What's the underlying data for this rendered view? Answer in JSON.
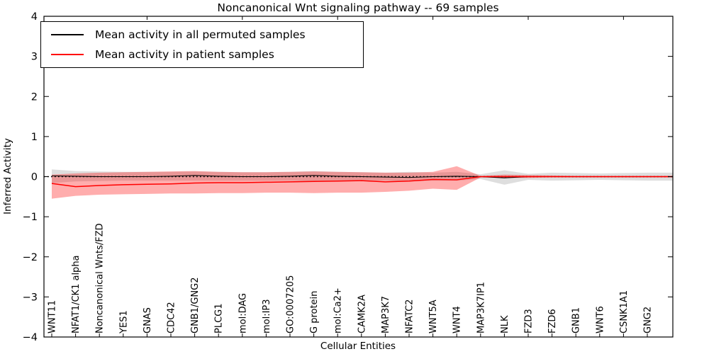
{
  "figure": {
    "title": "Noncanonical Wnt signaling pathway -- 69 samples",
    "xlabel": "Cellular Entities",
    "ylabel": "Inferred Activity"
  },
  "chart_data": {
    "type": "line",
    "title": "Noncanonical Wnt signaling pathway -- 69 samples",
    "xlabel": "Cellular Entities",
    "ylabel": "Inferred Activity",
    "ylim": [
      -4,
      4
    ],
    "yticks": [
      -4,
      -3,
      -2,
      -1,
      0,
      1,
      2,
      3,
      4
    ],
    "grid": false,
    "legend_position": "upper left",
    "background_color": "#ffffff",
    "categories": [
      "WNT11",
      "NFAT1/CK1 alpha",
      "Noncanonical Wnts/FZD",
      "YES1",
      "GNAS",
      "CDC42",
      "GNB1/GNG2",
      "PLCG1",
      "mol:DAG",
      "mol:IP3",
      "GO:0007205",
      "G protein",
      "mol:Ca2+",
      "CAMK2A",
      "MAP3K7",
      "NFATC2",
      "WNT5A",
      "WNT4",
      "MAP3K7IP1",
      "NLK",
      "FZD3",
      "FZD6",
      "GNB1",
      "WNT6",
      "CSNK1A1",
      "GNG2"
    ],
    "series": [
      {
        "name": "Mean activity in all permuted samples",
        "color": "#000000",
        "values": [
          0.02,
          0.01,
          0.0,
          0.0,
          0.0,
          0.01,
          0.03,
          0.01,
          0.0,
          0.0,
          0.01,
          0.03,
          0.01,
          0.0,
          -0.01,
          -0.02,
          0.0,
          0.01,
          0.0,
          -0.03,
          0.0,
          0.0,
          0.0,
          0.0,
          0.0,
          0.0
        ]
      },
      {
        "name": "Mean activity in patient samples",
        "color": "#ff0000",
        "values": [
          -0.17,
          -0.25,
          -0.22,
          -0.2,
          -0.19,
          -0.18,
          -0.16,
          -0.15,
          -0.15,
          -0.14,
          -0.13,
          -0.12,
          -0.11,
          -0.1,
          -0.13,
          -0.11,
          -0.07,
          -0.08,
          0.0,
          0.0,
          0.0,
          0.0,
          0.0,
          0.0,
          0.0,
          0.0
        ]
      }
    ],
    "bands": [
      {
        "name": "permuted-range",
        "color": "#000000",
        "opacity": 0.13,
        "top": [
          0.18,
          0.14,
          0.13,
          0.12,
          0.12,
          0.12,
          0.13,
          0.12,
          0.11,
          0.11,
          0.12,
          0.14,
          0.12,
          0.11,
          0.1,
          0.12,
          0.1,
          0.12,
          0.06,
          0.16,
          0.07,
          0.1,
          0.09,
          0.08,
          0.09,
          0.1
        ],
        "bottom": [
          -0.16,
          -0.12,
          -0.11,
          -0.1,
          -0.1,
          -0.1,
          -0.1,
          -0.1,
          -0.1,
          -0.1,
          -0.1,
          -0.12,
          -0.1,
          -0.1,
          -0.1,
          -0.12,
          -0.1,
          -0.1,
          -0.06,
          -0.2,
          -0.08,
          -0.1,
          -0.09,
          -0.08,
          -0.09,
          -0.1
        ]
      },
      {
        "name": "patient-range",
        "color": "#ff0000",
        "opacity": 0.32,
        "top": [
          0.05,
          0.08,
          0.1,
          0.11,
          0.12,
          0.13,
          0.14,
          0.12,
          0.11,
          0.11,
          0.12,
          0.13,
          0.12,
          0.11,
          0.1,
          0.1,
          0.12,
          0.26,
          0.02,
          0.05,
          0.04,
          0.03,
          0.02,
          0.02,
          0.02,
          0.02
        ],
        "bottom": [
          -0.55,
          -0.48,
          -0.45,
          -0.44,
          -0.43,
          -0.42,
          -0.42,
          -0.41,
          -0.41,
          -0.4,
          -0.4,
          -0.41,
          -0.4,
          -0.4,
          -0.38,
          -0.35,
          -0.3,
          -0.33,
          -0.02,
          -0.03,
          -0.03,
          -0.02,
          -0.02,
          -0.02,
          -0.02,
          -0.02
        ]
      }
    ],
    "zero_line": {
      "y": 0,
      "style": "dotted",
      "color": "#000000"
    }
  }
}
